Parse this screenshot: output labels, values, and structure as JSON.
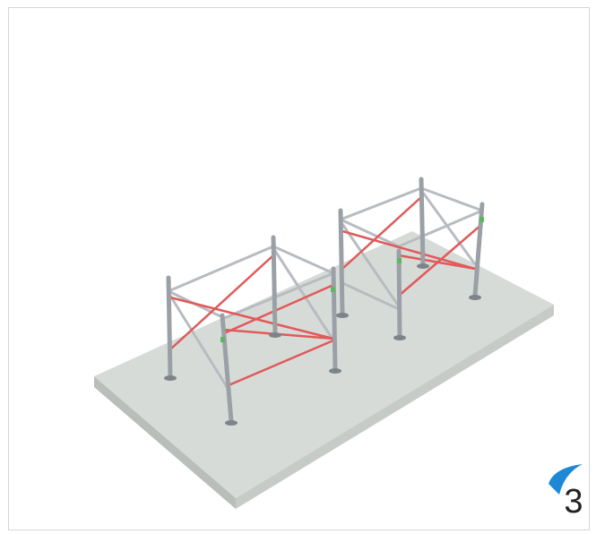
{
  "step": "3"
}
